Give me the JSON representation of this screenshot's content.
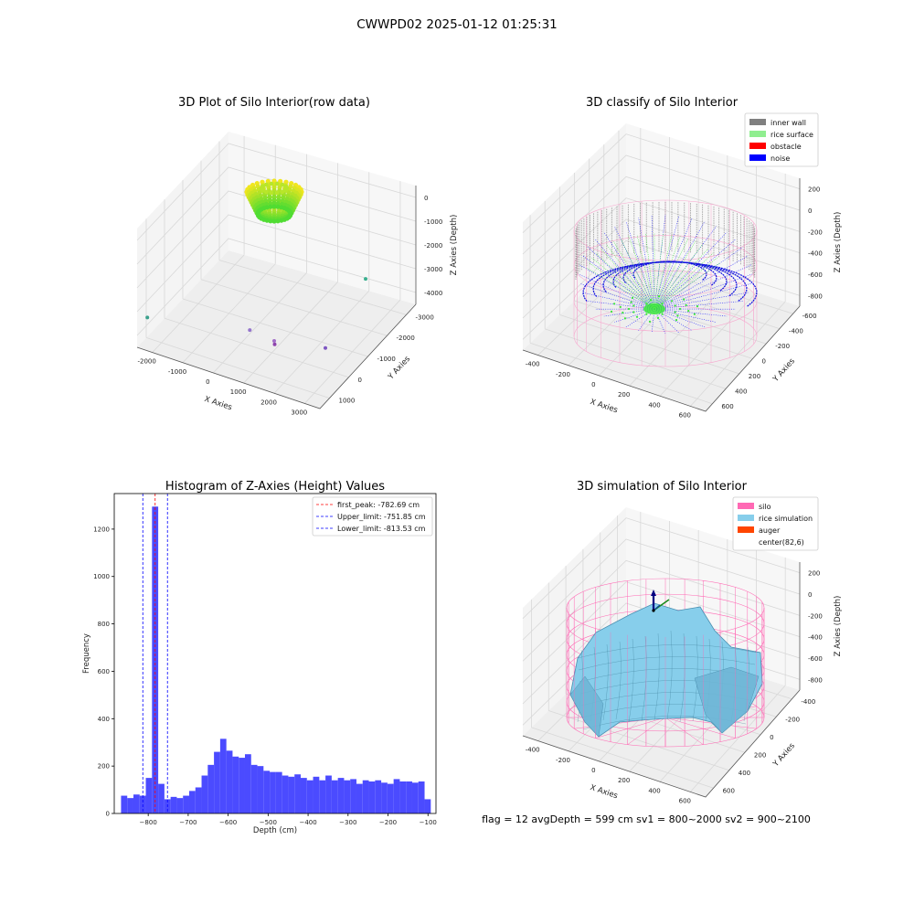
{
  "suptitle": "CWWPD02 2025-01-12 01:25:31",
  "footer_text": "flag = 12   avgDepth = 599 cm  sv1 = 800~2000  sv2 = 900~2100",
  "chart_data": [
    {
      "id": "raw",
      "type": "scatter3d",
      "title": "3D Plot of Silo Interior(row data)",
      "xlabel": "X Axies",
      "ylabel": "Y Axies",
      "zlabel": "Z Axies (Depth)",
      "x_ticks": [
        "-2000",
        "-1000",
        "0",
        "1000",
        "2000",
        "3000"
      ],
      "y_ticks": [
        "1000",
        "0",
        "-1000",
        "-2000",
        "-3000"
      ],
      "z_ticks": [
        "0",
        "-1000",
        "-2000",
        "-3000",
        "-4000"
      ],
      "xlim": [
        -2300,
        3500
      ],
      "ylim": [
        -3200,
        1500
      ],
      "zlim": [
        -4500,
        200
      ],
      "outliers": [
        {
          "x": -2100,
          "y": 1300,
          "z": -3400,
          "color": "#3aa08c"
        },
        {
          "x": 550,
          "y": 350,
          "z": -3600,
          "color": "#9575cd"
        },
        {
          "x": 1300,
          "y": 300,
          "z": -3900,
          "color": "#8e44ad"
        },
        {
          "x": 1300,
          "y": 320,
          "z": -3750,
          "color": "#a26ec8"
        },
        {
          "x": 2900,
          "y": 300,
          "z": -3400,
          "color": "#7e57c2"
        },
        {
          "x": 2950,
          "y": -1600,
          "z": -2300,
          "color": "#3aaf8f"
        }
      ],
      "cluster": {
        "center_x": -600,
        "center_y": 1600,
        "z_top": 0,
        "z_bottom": -800,
        "radius": 600
      }
    },
    {
      "id": "classify",
      "type": "scatter3d",
      "title": "3D classify of Silo Interior",
      "xlabel": "X Axies",
      "ylabel": "Y Axies",
      "zlabel": "Z Axies (Depth)",
      "x_ticks": [
        "-400",
        "-200",
        "0",
        "200",
        "400",
        "600"
      ],
      "y_ticks": [
        "600",
        "400",
        "200",
        "0",
        "-200",
        "-400",
        "-600"
      ],
      "z_ticks": [
        "200",
        "0",
        "-200",
        "-400",
        "-600",
        "-800"
      ],
      "legend": [
        {
          "label": "inner wall",
          "color": "#808080"
        },
        {
          "label": "rice surface",
          "color": "#90ee90"
        },
        {
          "label": "obstacle",
          "color": "#ff0000"
        },
        {
          "label": "noise",
          "color": "#0000ff"
        }
      ],
      "legend_position": "top-right"
    },
    {
      "id": "hist",
      "type": "bar",
      "title": "Histogram of Z-Axies (Height) Values",
      "xlabel": "Depth (cm)",
      "ylabel": "Frequency",
      "xlim": [
        -885,
        -80
      ],
      "ylim": [
        0,
        1350
      ],
      "x_ticks": [
        -800,
        -700,
        -600,
        -500,
        -400,
        -300,
        -200,
        -100
      ],
      "y_ticks": [
        0,
        200,
        400,
        600,
        800,
        1000,
        1200
      ],
      "bin_start": -868,
      "bin_width": 15.5,
      "values": [
        75,
        65,
        80,
        75,
        150,
        1295,
        125,
        60,
        70,
        65,
        75,
        95,
        110,
        160,
        205,
        260,
        315,
        265,
        240,
        235,
        250,
        205,
        200,
        180,
        175,
        175,
        160,
        155,
        165,
        150,
        140,
        155,
        140,
        160,
        140,
        150,
        140,
        145,
        125,
        140,
        135,
        140,
        130,
        125,
        145,
        135,
        135,
        130,
        135,
        60
      ],
      "bar_color": "#4b4bff",
      "lines": [
        {
          "label": "first_peak: -782.69 cm",
          "x": -782.69,
          "color": "#ff0000"
        },
        {
          "label": "Upper_limit: -751.85 cm",
          "x": -751.85,
          "color": "#0000ff"
        },
        {
          "label": "Lower_limit: -813.53 cm",
          "x": -813.53,
          "color": "#0000ff"
        }
      ],
      "legend_position": "top-right"
    },
    {
      "id": "simulation",
      "type": "surface3d",
      "title": "3D simulation of Silo Interior",
      "xlabel": "X Axies",
      "ylabel": "Y Axies",
      "zlabel": "Z Axies (Depth)",
      "x_ticks": [
        "-400",
        "-200",
        "0",
        "200",
        "400",
        "600"
      ],
      "y_ticks": [
        "600",
        "400",
        "200",
        "0",
        "-200",
        "-400"
      ],
      "z_ticks": [
        "200",
        "0",
        "-200",
        "-400",
        "-600",
        "-800"
      ],
      "legend": [
        {
          "label": "silo",
          "color": "#ff69b4"
        },
        {
          "label": "rice simulation",
          "color": "#87ceeb"
        },
        {
          "label": "auger",
          "color": "#ff4500"
        },
        {
          "label": "center(82,6)",
          "color": "#ffffff"
        }
      ],
      "legend_position": "top-right"
    }
  ]
}
